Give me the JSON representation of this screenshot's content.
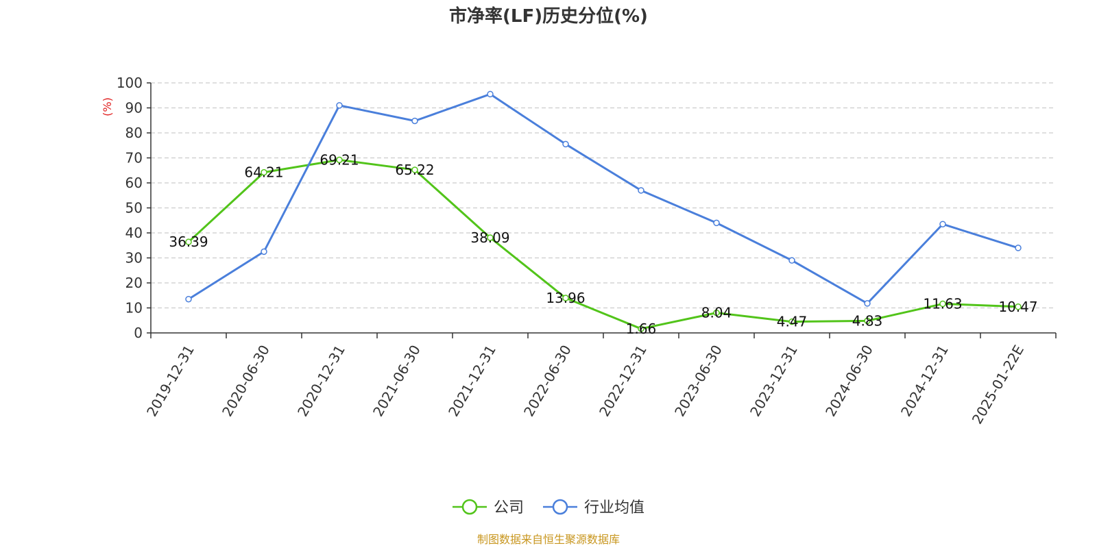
{
  "chart_data": {
    "type": "line",
    "title": "市净率(LF)历史分位(%)",
    "ylabel": "(%)",
    "xlabel": "",
    "ylim": [
      0,
      100
    ],
    "yticks": [
      0,
      10,
      20,
      30,
      40,
      50,
      60,
      70,
      80,
      90,
      100
    ],
    "grid": "horizontal dashed",
    "legend_position": "bottom-center",
    "categories": [
      "2019-12-31",
      "2020-06-30",
      "2020-12-31",
      "2021-06-30",
      "2021-12-31",
      "2022-06-30",
      "2022-12-31",
      "2023-06-30",
      "2023-12-31",
      "2024-06-30",
      "2024-12-31",
      "2025-01-22E"
    ],
    "series": [
      {
        "name": "公司",
        "color": "#52c41a",
        "values": [
          36.39,
          64.21,
          69.21,
          65.22,
          38.09,
          13.96,
          1.66,
          8.04,
          4.47,
          4.83,
          11.63,
          10.47
        ],
        "labels": [
          "36.39",
          "64.21",
          "69.21",
          "65.22",
          "38.09",
          "13.96",
          "1.66",
          "8.04",
          "4.47",
          "4.83",
          "11.63",
          "10.47"
        ]
      },
      {
        "name": "行业均值",
        "color": "#4a7fdb",
        "values": [
          13.5,
          32.5,
          91.0,
          84.8,
          95.5,
          75.5,
          57.0,
          44.0,
          29.0,
          11.8,
          43.5,
          34.0
        ]
      }
    ]
  },
  "colors": {
    "unit_label": "#e02020",
    "source_text": "#c8961e",
    "axis": "#333333",
    "grid": "#cccccc"
  },
  "source_text": "制图数据来自恒生聚源数据库"
}
